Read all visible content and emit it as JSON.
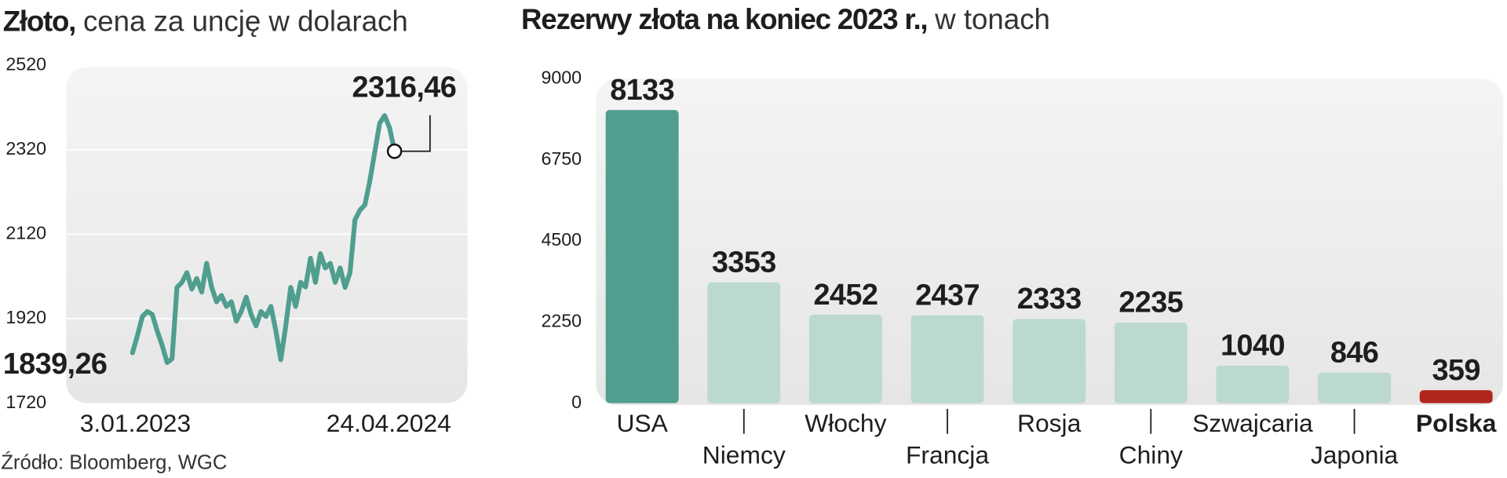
{
  "chart_data": [
    {
      "type": "line",
      "title": "Złoto,",
      "subtitle": "cena za uncję w dolarach",
      "categories": [
        "3.01.2023",
        null,
        null,
        null,
        null,
        null,
        null,
        null,
        null,
        null,
        null,
        null,
        null,
        null,
        null,
        null,
        null,
        null,
        null,
        null,
        null,
        null,
        null,
        null,
        null,
        null,
        null,
        null,
        null,
        null,
        null,
        null,
        null,
        null,
        null,
        null,
        null,
        null,
        null,
        null,
        null,
        null,
        null,
        null,
        null,
        null,
        null,
        null,
        null,
        null,
        null,
        null,
        null,
        "24.04.2024"
      ],
      "values": [
        1839.26,
        1880,
        1925,
        1937,
        1930,
        1891,
        1857,
        1816,
        1825,
        1994,
        2006,
        2029,
        1990,
        2015,
        1983,
        2051,
        1995,
        1960,
        1975,
        1949,
        1960,
        1914,
        1937,
        1971,
        1930,
        1903,
        1937,
        1925,
        1949,
        1891,
        1823,
        1903,
        1994,
        1949,
        2006,
        1995,
        2063,
        2006,
        2074,
        2040,
        2051,
        2006,
        2040,
        1994,
        2029,
        2154,
        2177,
        2189,
        2246,
        2314,
        2383,
        2401,
        2372,
        2316.46
      ],
      "value_labels": [
        "1839,26",
        null,
        null,
        null,
        null,
        null,
        null,
        null,
        null,
        null,
        null,
        null,
        null,
        null,
        null,
        null,
        null,
        null,
        null,
        null,
        null,
        null,
        null,
        null,
        null,
        null,
        null,
        null,
        null,
        null,
        null,
        null,
        null,
        null,
        null,
        null,
        null,
        null,
        null,
        null,
        null,
        null,
        null,
        null,
        null,
        null,
        null,
        null,
        null,
        null,
        null,
        null,
        null,
        "2316,46"
      ],
      "color": "#4f9e8f",
      "ylim": [
        1720,
        2520
      ],
      "yticks": [
        1720,
        1920,
        2120,
        2320,
        2520
      ],
      "grid": true
    },
    {
      "type": "bar",
      "title": "Rezerwy złota na koniec 2023 r.,",
      "subtitle": "w tonach",
      "categories": [
        "USA",
        "Niemcy",
        "Włochy",
        "Francja",
        "Rosja",
        "Chiny",
        "Szwajcaria",
        "Japonia",
        "Polska"
      ],
      "values": [
        8133,
        3353,
        2452,
        2437,
        2333,
        2235,
        1040,
        846,
        359
      ],
      "colors": [
        "#4f9e8f",
        "#bcd9d1",
        "#bcd9d1",
        "#bcd9d1",
        "#bcd9d1",
        "#bcd9d1",
        "#bcd9d1",
        "#bcd9d1",
        "#b3261e"
      ],
      "ylim": [
        0,
        9000
      ],
      "yticks": [
        0,
        2250,
        4500,
        6750,
        9000
      ],
      "grid": false
    }
  ],
  "source": "Źródło: Bloomberg, WGC"
}
